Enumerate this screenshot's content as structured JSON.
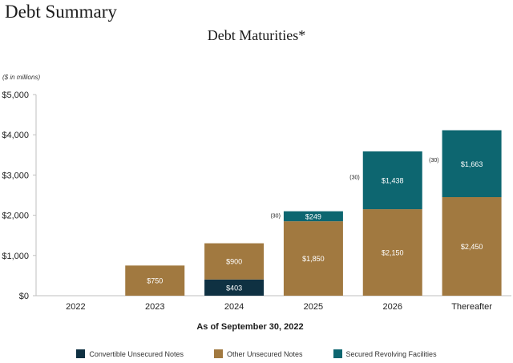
{
  "page": {
    "title": "Debt Summary"
  },
  "chart_data": {
    "type": "bar",
    "stacked": true,
    "title": "Debt Maturities*",
    "unit_note": "($ in millions)",
    "xlabel": "As of September 30, 2022",
    "ylabel": "",
    "ylim": [
      0,
      5000
    ],
    "yticks": [
      0,
      1000,
      2000,
      3000,
      4000,
      5000
    ],
    "ytick_labels": [
      "$0",
      "$1,000",
      "$2,000",
      "$3,000",
      "$4,000",
      "$5,000"
    ],
    "categories": [
      "2022",
      "2023",
      "2024",
      "2025",
      "2026",
      "Thereafter"
    ],
    "grid": false,
    "legend_position": "bottom",
    "series": [
      {
        "name": "Convertible Unsecured Notes",
        "color": "#0f3142",
        "values": [
          0,
          0,
          403,
          0,
          0,
          0
        ],
        "labels": [
          "",
          "",
          "$403",
          "",
          "",
          ""
        ]
      },
      {
        "name": "Other Unsecured Notes",
        "color": "#a17940",
        "values": [
          0,
          750,
          900,
          1850,
          2150,
          2450
        ],
        "labels": [
          "",
          "$750",
          "$900",
          "$1,850",
          "$2,150",
          "$2,450"
        ]
      },
      {
        "name": "Secured Revolving Facilities",
        "color": "#0d6670",
        "values": [
          0,
          0,
          0,
          249,
          1438,
          1663
        ],
        "labels": [
          "",
          "",
          "",
          "$249",
          "$1,438",
          "$1,663"
        ]
      }
    ],
    "annotations": [
      {
        "category": "2025",
        "text": "(30)"
      },
      {
        "category": "2026",
        "text": "(30)"
      },
      {
        "category": "Thereafter",
        "text": "(30)"
      }
    ]
  }
}
